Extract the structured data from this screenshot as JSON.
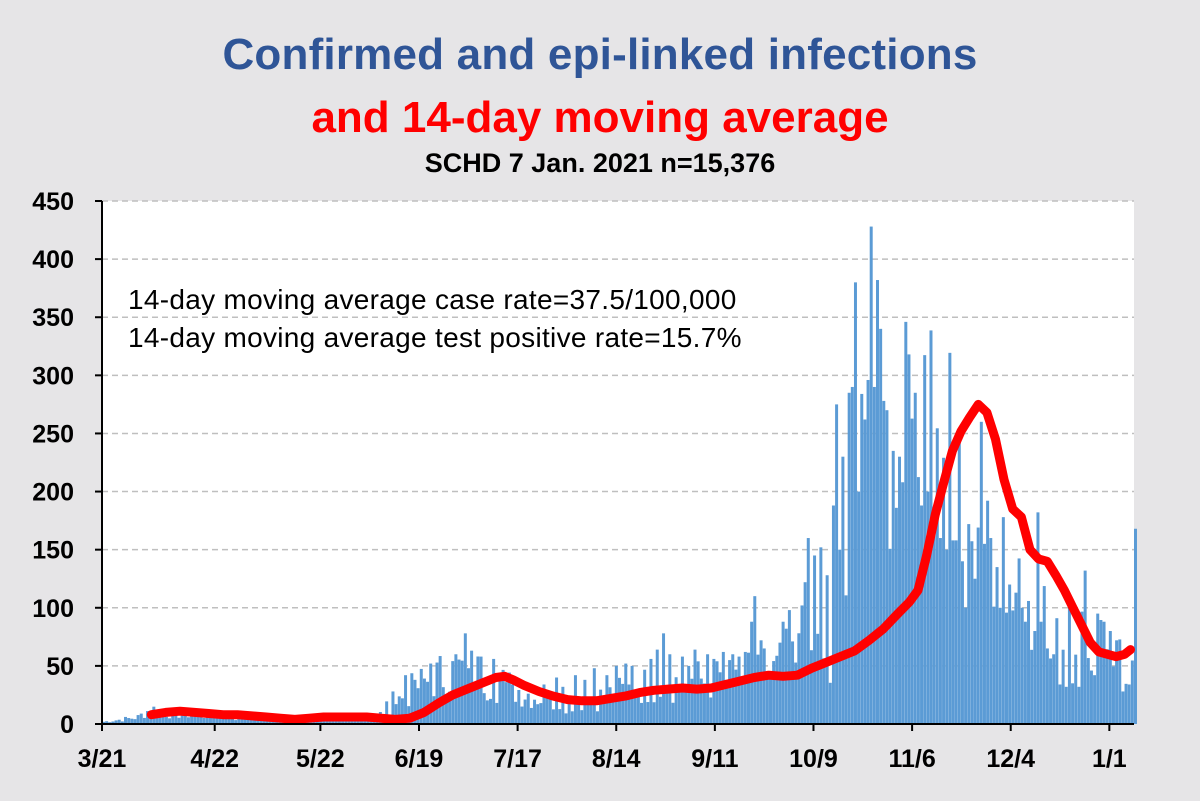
{
  "title_line1": "Confirmed and epi-linked infections",
  "title_line2": "and 14-day moving average",
  "subtitle": "SCHD 7 Jan. 2021 n=15,376",
  "annotations": [
    "14-day moving average case rate=37.5/100,000",
    "14-day moving average test positive rate=15.7%"
  ],
  "colors": {
    "bars": "#5b9bd5",
    "average_line": "#ff0000",
    "title_blue": "#2f5597",
    "title_red": "#ff0000",
    "plot_bg": "#ffffff",
    "page_bg": "#e6e5e7"
  },
  "chart_data": {
    "type": "bar",
    "x_tick_labels": [
      "3/21",
      "4/22",
      "5/22",
      "6/19",
      "7/17",
      "8/14",
      "9/11",
      "10/9",
      "11/6",
      "12/4",
      "1/1"
    ],
    "y_tick_labels": [
      "0",
      "50",
      "100",
      "150",
      "200",
      "250",
      "300",
      "350",
      "400",
      "450"
    ],
    "ylim": [
      0,
      450
    ],
    "grid": "horizontal dashed",
    "series": [
      {
        "type": "bar",
        "x_start": "3/21",
        "values_keypoints": [
          [
            0,
            2
          ],
          [
            10,
            6
          ],
          [
            14,
            14
          ],
          [
            18,
            10
          ],
          [
            25,
            9
          ],
          [
            32,
            8
          ],
          [
            40,
            6
          ],
          [
            50,
            5
          ],
          [
            60,
            5
          ],
          [
            70,
            5
          ],
          [
            75,
            5
          ],
          [
            80,
            6
          ],
          [
            85,
            20
          ],
          [
            90,
            30
          ],
          [
            95,
            40
          ],
          [
            100,
            45
          ],
          [
            106,
            50
          ],
          [
            112,
            42
          ],
          [
            118,
            35
          ],
          [
            124,
            28
          ],
          [
            130,
            22
          ],
          [
            136,
            20
          ],
          [
            142,
            22
          ],
          [
            150,
            28
          ],
          [
            158,
            35
          ],
          [
            166,
            38
          ],
          [
            175,
            40
          ],
          [
            182,
            40
          ],
          [
            190,
            44
          ],
          [
            198,
            48
          ],
          [
            204,
            55
          ],
          [
            210,
            62
          ],
          [
            216,
            75
          ],
          [
            222,
            90
          ],
          [
            226,
            110
          ],
          [
            230,
            150
          ],
          [
            233,
            195
          ],
          [
            236,
            235
          ],
          [
            239,
            258
          ],
          [
            242,
            275
          ],
          [
            245,
            262
          ],
          [
            248,
            235
          ],
          [
            252,
            200
          ],
          [
            258,
            175
          ],
          [
            264,
            155
          ],
          [
            270,
            140
          ],
          [
            276,
            120
          ],
          [
            282,
            95
          ],
          [
            288,
            75
          ],
          [
            294,
            60
          ],
          [
            299,
            55
          ],
          [
            301,
            70
          ]
        ],
        "spikes": [
          [
            74,
            8
          ],
          [
            92,
            28
          ],
          [
            96,
            42
          ],
          [
            99,
            38
          ],
          [
            104,
            52
          ],
          [
            112,
            60
          ],
          [
            115,
            78
          ],
          [
            116,
            48
          ],
          [
            120,
            58
          ],
          [
            124,
            56
          ],
          [
            128,
            36
          ],
          [
            130,
            34
          ],
          [
            140,
            34
          ],
          [
            141,
            28
          ],
          [
            144,
            40
          ],
          [
            146,
            32
          ],
          [
            150,
            42
          ],
          [
            153,
            38
          ],
          [
            156,
            48
          ],
          [
            160,
            42
          ],
          [
            163,
            50
          ],
          [
            166,
            52
          ],
          [
            168,
            50
          ],
          [
            174,
            56
          ],
          [
            176,
            64
          ],
          [
            178,
            78
          ],
          [
            180,
            60
          ],
          [
            184,
            58
          ],
          [
            186,
            50
          ],
          [
            188,
            64
          ],
          [
            192,
            60
          ],
          [
            194,
            56
          ],
          [
            197,
            62
          ],
          [
            200,
            60
          ],
          [
            202,
            58
          ],
          [
            204,
            62
          ],
          [
            206,
            88
          ],
          [
            207,
            110
          ],
          [
            209,
            72
          ],
          [
            210,
            65
          ],
          [
            215,
            70
          ],
          [
            216,
            88
          ],
          [
            217,
            82
          ],
          [
            218,
            98
          ],
          [
            222,
            102
          ],
          [
            223,
            122
          ],
          [
            224,
            160
          ],
          [
            226,
            145
          ],
          [
            228,
            152
          ],
          [
            230,
            128
          ],
          [
            232,
            188
          ],
          [
            233,
            275
          ],
          [
            234,
            150
          ],
          [
            235,
            230
          ],
          [
            237,
            285
          ],
          [
            238,
            290
          ],
          [
            239,
            380
          ],
          [
            240,
            200
          ],
          [
            241,
            284
          ],
          [
            242,
            262
          ],
          [
            243,
            296
          ],
          [
            244,
            428
          ],
          [
            245,
            290
          ],
          [
            246,
            382
          ],
          [
            247,
            340
          ],
          [
            248,
            278
          ],
          [
            249,
            270
          ],
          [
            251,
            235
          ],
          [
            252,
            186
          ],
          [
            253,
            230
          ],
          [
            254,
            208
          ],
          [
            255,
            346
          ],
          [
            256,
            318
          ],
          [
            258,
            285
          ],
          [
            260,
            188
          ],
          [
            262,
            200
          ],
          [
            264,
            172
          ],
          [
            266,
            160
          ],
          [
            268,
            150
          ],
          [
            270,
            158
          ],
          [
            271,
            158
          ],
          [
            273,
            140
          ],
          [
            275,
            172
          ],
          [
            277,
            125
          ],
          [
            280,
            155
          ],
          [
            282,
            160
          ],
          [
            284,
            135
          ],
          [
            285,
            100
          ],
          [
            288,
            120
          ],
          [
            290,
            113
          ],
          [
            292,
            100
          ],
          [
            293,
            88
          ],
          [
            296,
            80
          ],
          [
            298,
            88
          ],
          [
            300,
            65
          ],
          [
            302,
            60
          ],
          [
            304,
            34
          ],
          [
            306,
            32
          ],
          [
            308,
            35
          ],
          [
            310,
            32
          ],
          [
            312,
            132
          ],
          [
            314,
            46
          ],
          [
            315,
            42
          ],
          [
            316,
            95
          ],
          [
            318,
            88
          ],
          [
            320,
            80
          ],
          [
            322,
            72
          ],
          [
            324,
            28
          ],
          [
            326,
            34
          ],
          [
            328,
            168
          ]
        ],
        "n_days": 293
      },
      {
        "type": "line",
        "x_start": "4/4",
        "points": [
          [
            0,
            8
          ],
          [
            5,
            10
          ],
          [
            10,
            11
          ],
          [
            15,
            10
          ],
          [
            20,
            9
          ],
          [
            25,
            8
          ],
          [
            30,
            8
          ],
          [
            35,
            7
          ],
          [
            40,
            6
          ],
          [
            45,
            5
          ],
          [
            50,
            4
          ],
          [
            55,
            5
          ],
          [
            60,
            6
          ],
          [
            65,
            6
          ],
          [
            70,
            6
          ],
          [
            75,
            6
          ],
          [
            80,
            5
          ],
          [
            85,
            4
          ],
          [
            90,
            5
          ],
          [
            95,
            10
          ],
          [
            100,
            18
          ],
          [
            105,
            25
          ],
          [
            110,
            30
          ],
          [
            115,
            35
          ],
          [
            120,
            40
          ],
          [
            123,
            41
          ],
          [
            126,
            38
          ],
          [
            130,
            33
          ],
          [
            135,
            28
          ],
          [
            140,
            24
          ],
          [
            145,
            21
          ],
          [
            150,
            20
          ],
          [
            155,
            20
          ],
          [
            160,
            22
          ],
          [
            165,
            24
          ],
          [
            170,
            27
          ],
          [
            175,
            29
          ],
          [
            180,
            30
          ],
          [
            185,
            31
          ],
          [
            190,
            30
          ],
          [
            195,
            31
          ],
          [
            200,
            34
          ],
          [
            205,
            37
          ],
          [
            210,
            40
          ],
          [
            215,
            42
          ],
          [
            220,
            41
          ],
          [
            225,
            42
          ],
          [
            230,
            48
          ],
          [
            235,
            53
          ],
          [
            240,
            58
          ],
          [
            245,
            63
          ],
          [
            250,
            72
          ],
          [
            255,
            82
          ],
          [
            260,
            95
          ],
          [
            264,
            105
          ],
          [
            267,
            115
          ],
          [
            270,
            145
          ],
          [
            273,
            180
          ],
          [
            276,
            208
          ],
          [
            279,
            235
          ],
          [
            282,
            252
          ],
          [
            285,
            264
          ],
          [
            288,
            275
          ],
          [
            291,
            268
          ],
          [
            294,
            245
          ],
          [
            297,
            210
          ],
          [
            300,
            185
          ],
          [
            303,
            178
          ],
          [
            306,
            150
          ],
          [
            309,
            142
          ],
          [
            312,
            140
          ],
          [
            315,
            128
          ],
          [
            318,
            115
          ],
          [
            321,
            100
          ],
          [
            324,
            85
          ],
          [
            327,
            70
          ],
          [
            330,
            62
          ],
          [
            333,
            60
          ],
          [
            336,
            58
          ],
          [
            339,
            60
          ],
          [
            341,
            64
          ]
        ]
      }
    ]
  }
}
